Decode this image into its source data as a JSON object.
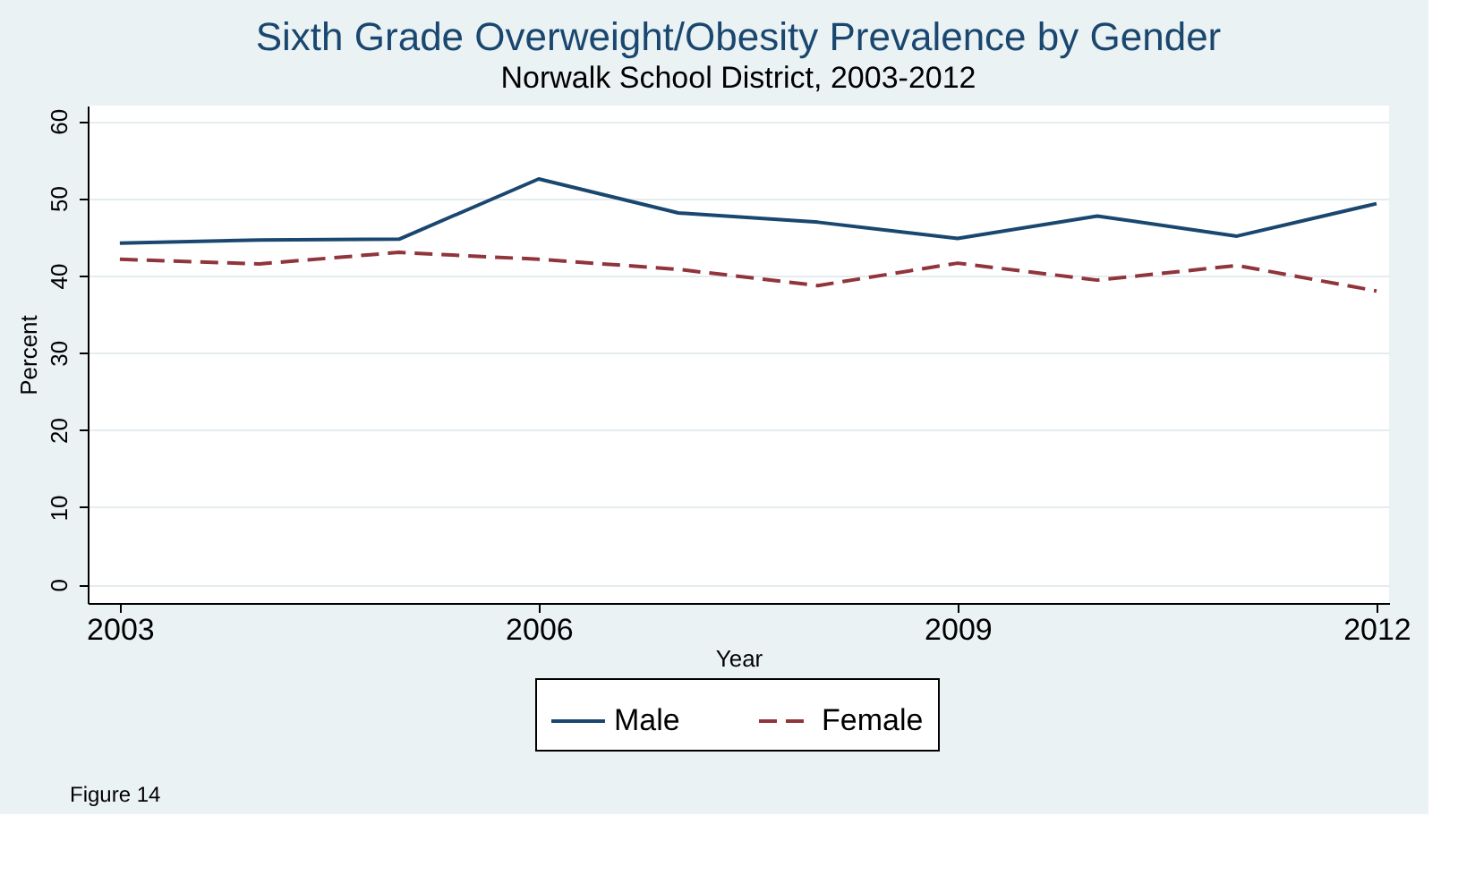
{
  "chart_data": {
    "type": "line",
    "title": "Sixth Grade Overweight/Obesity Prevalence by Gender",
    "subtitle": "Norwalk School District, 2003-2012",
    "xlabel": "Year",
    "ylabel": "Percent",
    "x": [
      2003,
      2004,
      2005,
      2006,
      2007,
      2008,
      2009,
      2010,
      2011,
      2012
    ],
    "series": [
      {
        "name": "Male",
        "color": "#1a476f",
        "line_style": "solid",
        "values": [
          44.2,
          44.6,
          44.7,
          52.5,
          48.1,
          46.9,
          44.8,
          47.7,
          45.1,
          49.3
        ]
      },
      {
        "name": "Female",
        "color": "#90353b",
        "line_style": "dashed",
        "values": [
          42.1,
          41.5,
          43.0,
          42.1,
          40.8,
          38.7,
          41.6,
          39.4,
          41.3,
          38.0
        ]
      }
    ],
    "xlim": [
      2002.77,
      2012.09
    ],
    "xticks": [
      2003,
      2006,
      2009,
      2012
    ],
    "ylim": [
      -2.4,
      62
    ],
    "yticks": [
      0,
      10,
      20,
      30,
      40,
      50,
      60
    ],
    "grid": "y",
    "legend": "bottom",
    "marker": "none",
    "annotations": [
      "Figure 14"
    ]
  }
}
